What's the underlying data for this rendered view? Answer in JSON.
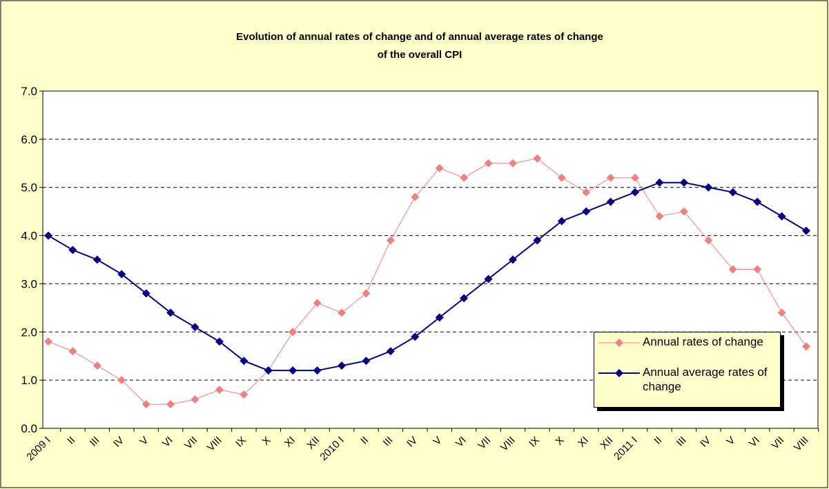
{
  "chart_data": {
    "type": "line",
    "title": "Evolution of annual rates of change and of annual average rates of change",
    "subtitle": "of  the overall CPI",
    "categories": [
      "2009 I",
      "II",
      "III",
      "IV",
      "V",
      "VI",
      "VII",
      "VIII",
      "IX",
      "X",
      "XI",
      "XII",
      "2010 I",
      "II",
      "III",
      "IV",
      "V",
      "VI",
      "VII",
      "VIII",
      "IX",
      "X",
      "XI",
      "XII",
      "2011 I",
      "II",
      "III",
      "IV",
      "V",
      "VI",
      "VII",
      "VIII"
    ],
    "series": [
      {
        "name": "Annual rates of change",
        "color": "#f08080",
        "values": [
          1.8,
          1.6,
          1.3,
          1.0,
          0.5,
          0.5,
          0.6,
          0.8,
          0.7,
          1.2,
          2.0,
          2.6,
          2.4,
          2.8,
          3.9,
          4.8,
          5.4,
          5.2,
          5.5,
          5.5,
          5.6,
          5.2,
          4.9,
          5.2,
          5.2,
          4.4,
          4.5,
          3.9,
          3.3,
          3.3,
          2.4,
          1.7
        ]
      },
      {
        "name": "Annual average rates of change",
        "color": "#000080",
        "values": [
          4.0,
          3.7,
          3.5,
          3.2,
          2.8,
          2.4,
          2.1,
          1.8,
          1.4,
          1.2,
          1.2,
          1.2,
          1.3,
          1.4,
          1.6,
          1.9,
          2.3,
          2.7,
          3.1,
          3.5,
          3.9,
          4.3,
          4.5,
          4.7,
          4.9,
          5.1,
          5.1,
          5.0,
          4.9,
          4.7,
          4.4,
          4.1
        ]
      }
    ],
    "ylim": [
      0,
      7
    ],
    "yticks": [
      {
        "value": 0,
        "label": "0.0"
      },
      {
        "value": 1,
        "label": "1.0"
      },
      {
        "value": 2,
        "label": "2.0"
      },
      {
        "value": 3,
        "label": "3.0"
      },
      {
        "value": 4,
        "label": "4.0"
      },
      {
        "value": 5,
        "label": "5.0"
      },
      {
        "value": 6,
        "label": "6.0"
      },
      {
        "value": 7,
        "label": "7.0"
      }
    ],
    "grid": true
  }
}
